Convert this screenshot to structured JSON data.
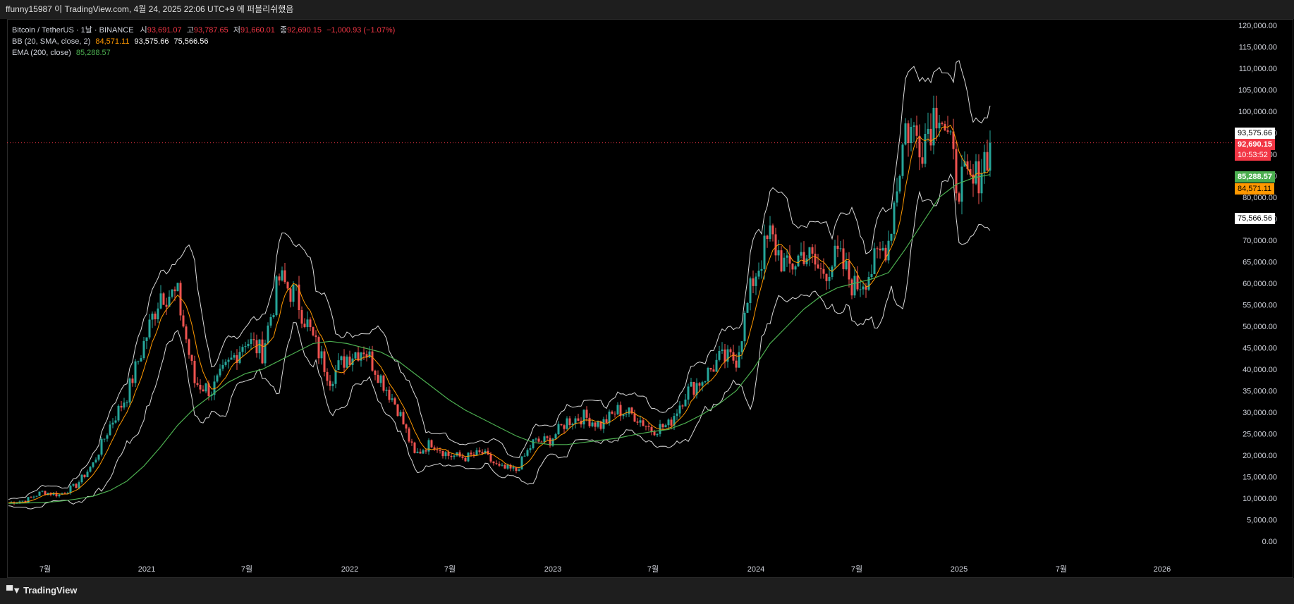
{
  "header": {
    "publish_line": "ffunny15987 이 TradingView.com, 4월 24, 2025 22:06 UTC+9 에 퍼블리쉬했음"
  },
  "legend": {
    "symbol": "Bitcoin / TetherUS · 1날 · BINANCE",
    "open_label": "시",
    "open": "93,691.07",
    "high_label": "고",
    "high": "93,787.65",
    "low_label": "저",
    "low": "91,660.01",
    "close_label": "종",
    "close": "92,690.15",
    "change": "−1,000.93 (−1.07%)",
    "bb_label": "BB (20, SMA, close, 2)",
    "bb_basis": "84,571.11",
    "bb_upper": "93,575.66",
    "bb_lower": "75,566.56",
    "ema_label": "EMA (200, close)",
    "ema_value": "85,288.57"
  },
  "price_tags": {
    "bb_upper": "93,575.66",
    "last_price": "92,690.15",
    "countdown": "10:53:52",
    "ema": "85,288.57",
    "bb_basis": "84,571.11",
    "bb_lower": "75,566.56"
  },
  "colors": {
    "up": "#26a69a",
    "down": "#ef5350",
    "ema": "#4caf50",
    "bb_band": "#d9d9d9",
    "bb_basis": "#ff9800",
    "last_price": "#f23645"
  },
  "footer": {
    "brand": "TradingView"
  },
  "chart_data": {
    "type": "line",
    "title": "Bitcoin / TetherUS · 1날 · BINANCE",
    "y_axis_side": "right",
    "y_ticks": [
      "0.00",
      "5,000.00",
      "10,000.00",
      "15,000.00",
      "20,000.00",
      "25,000.00",
      "30,000.00",
      "35,000.00",
      "40,000.00",
      "45,000.00",
      "50,000.00",
      "55,000.00",
      "60,000.00",
      "65,000.00",
      "70,000.00",
      "75,000.00",
      "80,000.00",
      "85,000.00",
      "90,000.00",
      "95,000.00",
      "100,000.00",
      "105,000.00",
      "110,000.00",
      "115,000.00",
      "120,000.00"
    ],
    "ylim": [
      0,
      120000
    ],
    "x_ticks": [
      "7월",
      "2021",
      "7월",
      "2022",
      "7월",
      "2023",
      "7월",
      "2024",
      "7월",
      "2025",
      "7월",
      "2026"
    ],
    "x": [
      "2020-06",
      "2020-07",
      "2020-08",
      "2020-09",
      "2020-10",
      "2020-11",
      "2020-12",
      "2021-01",
      "2021-02",
      "2021-03",
      "2021-04",
      "2021-05",
      "2021-06",
      "2021-07",
      "2021-08",
      "2021-09",
      "2021-10",
      "2021-11",
      "2021-12",
      "2022-01",
      "2022-02",
      "2022-03",
      "2022-04",
      "2022-05",
      "2022-06",
      "2022-07",
      "2022-08",
      "2022-09",
      "2022-10",
      "2022-11",
      "2022-12",
      "2023-01",
      "2023-02",
      "2023-03",
      "2023-04",
      "2023-05",
      "2023-06",
      "2023-07",
      "2023-08",
      "2023-09",
      "2023-10",
      "2023-11",
      "2023-12",
      "2024-01",
      "2024-02",
      "2024-03",
      "2024-04",
      "2024-05",
      "2024-06",
      "2024-07",
      "2024-08",
      "2024-09",
      "2024-10",
      "2024-11",
      "2024-12",
      "2025-01",
      "2025-02",
      "2025-03",
      "2025-04"
    ],
    "series": [
      {
        "name": "Bitcoin / TetherUS",
        "values": [
          9000,
          9500,
          11500,
          10800,
          13000,
          18000,
          27000,
          34000,
          46000,
          58000,
          57000,
          37000,
          35000,
          41000,
          47000,
          44000,
          61000,
          57000,
          47000,
          38000,
          43000,
          45000,
          38000,
          31000,
          20000,
          23000,
          20000,
          19500,
          20500,
          17000,
          16500,
          23000,
          23500,
          28000,
          29000,
          27000,
          30500,
          29300,
          26000,
          27000,
          34500,
          37700,
          42300,
          42500,
          61000,
          71000,
          63000,
          67500,
          62500,
          66000,
          59000,
          63300,
          70200,
          96400,
          93400,
          102400,
          84300,
          82500,
          92690
        ]
      },
      {
        "name": "EMA (200, close)",
        "values": [
          8800,
          8900,
          9000,
          9300,
          9800,
          10500,
          11800,
          14000,
          17500,
          22000,
          27000,
          31000,
          34000,
          37000,
          39000,
          40000,
          42000,
          44000,
          46000,
          46500,
          46000,
          45000,
          44000,
          42000,
          39000,
          36000,
          33000,
          30500,
          28500,
          26500,
          24500,
          23000,
          22500,
          22500,
          23000,
          23500,
          24000,
          24800,
          25500,
          26000,
          27500,
          29500,
          32000,
          35000,
          40000,
          46000,
          50000,
          54000,
          57000,
          59000,
          60000,
          61000,
          62500,
          68000,
          74000,
          80000,
          83000,
          84500,
          85288.57
        ]
      }
    ]
  }
}
